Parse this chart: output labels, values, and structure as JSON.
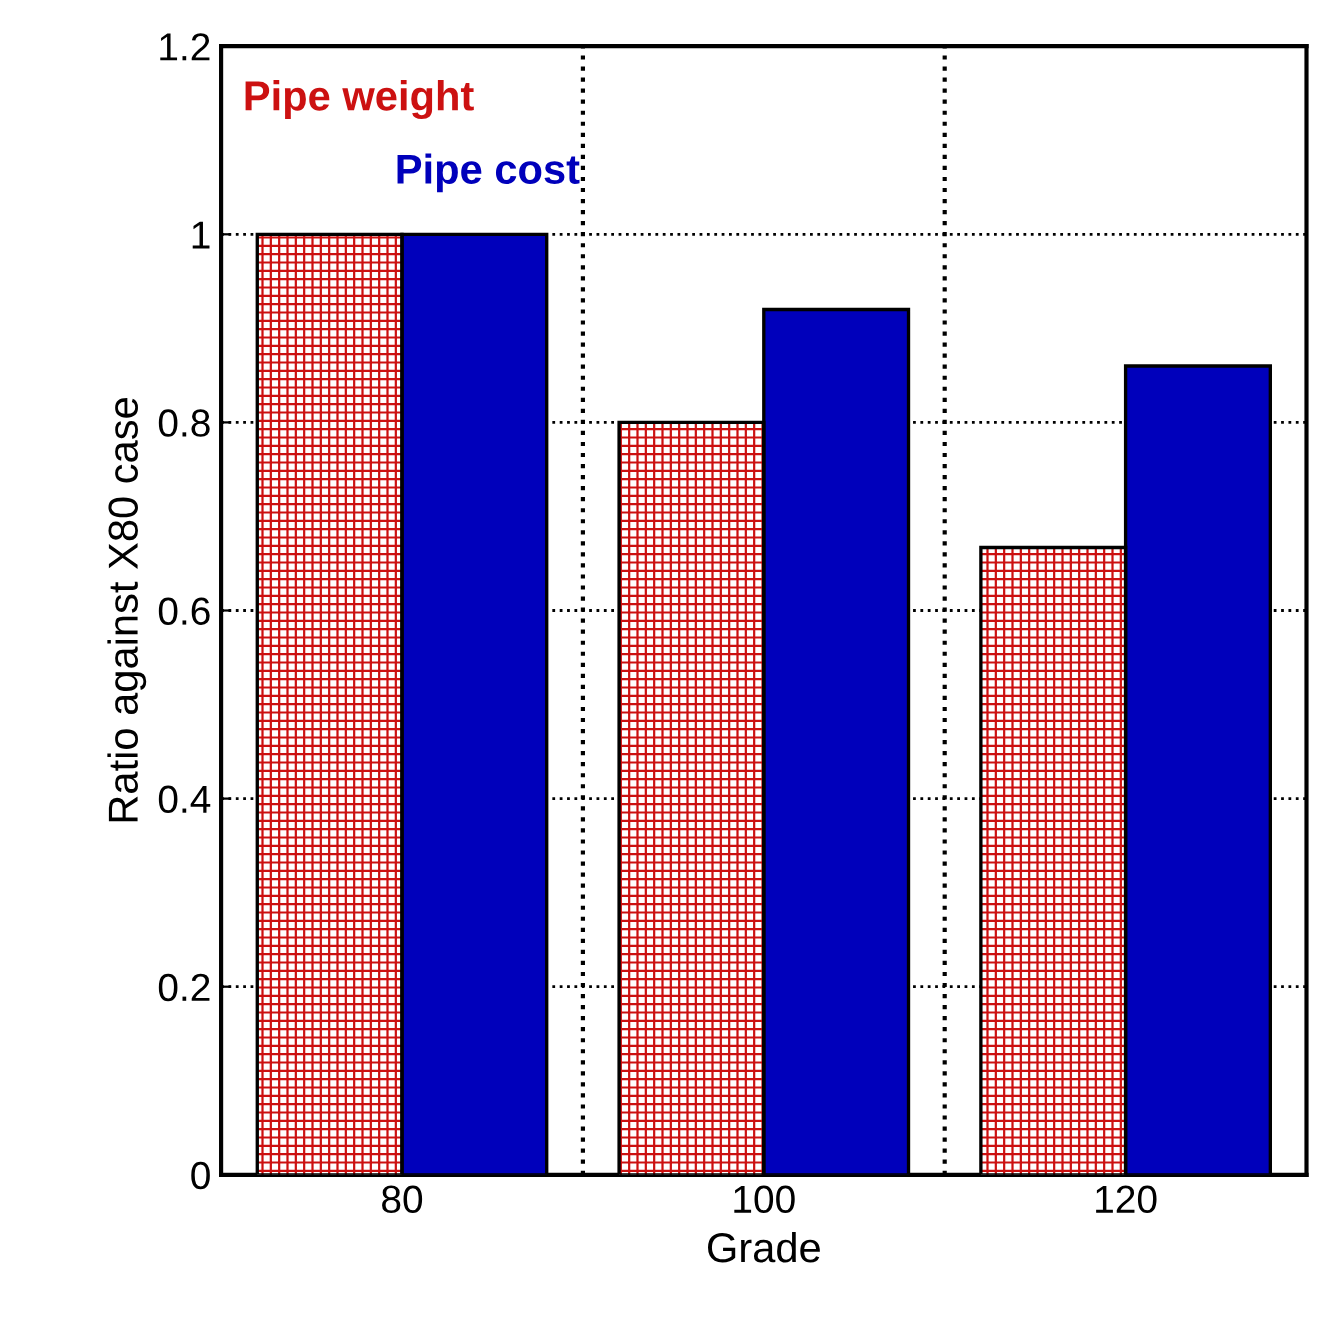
{
  "chart_data": {
    "type": "bar",
    "xlabel": "Grade",
    "ylabel": "Ratio against X80 case",
    "categories": [
      "80",
      "100",
      "120"
    ],
    "series": [
      {
        "name": "Pipe weight",
        "color": "#cc1111",
        "values": [
          1.0,
          0.8,
          0.667
        ]
      },
      {
        "name": "Pipe cost",
        "color": "#0000bb",
        "values": [
          1.0,
          0.92,
          0.86
        ]
      }
    ],
    "ylim": [
      0,
      1.2
    ],
    "yticks": [
      0,
      0.2,
      0.4,
      0.6,
      0.8,
      1,
      1.2
    ],
    "grid": true,
    "legend": "top left"
  }
}
